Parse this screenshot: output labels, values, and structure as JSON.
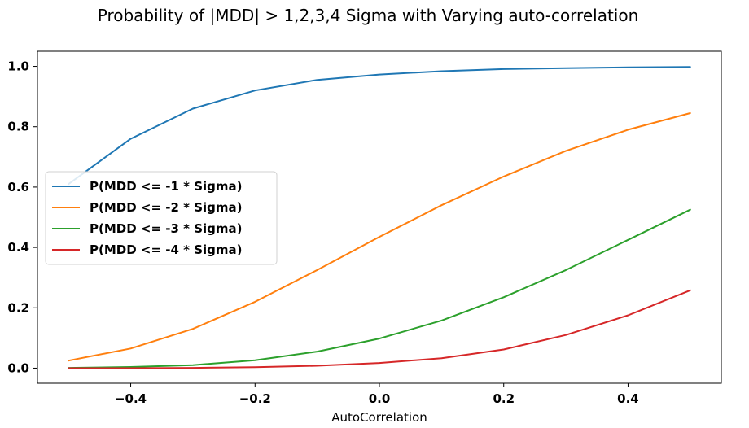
{
  "chart_data": {
    "type": "line",
    "title": "Probability of |MDD| > 1,2,3,4 Sigma with Varying auto-correlation",
    "xlabel": "AutoCorrelation",
    "ylabel": "",
    "x": [
      -0.5,
      -0.4,
      -0.3,
      -0.2,
      -0.1,
      0.0,
      0.1,
      0.2,
      0.3,
      0.4,
      0.5
    ],
    "xlim": [
      -0.55,
      0.55
    ],
    "ylim": [
      -0.05,
      1.05
    ],
    "xticks": [
      -0.4,
      -0.2,
      0.0,
      0.2,
      0.4
    ],
    "xtick_labels": [
      "−0.4",
      "−0.2",
      "0.0",
      "0.2",
      "0.4"
    ],
    "yticks": [
      0.0,
      0.2,
      0.4,
      0.6,
      0.8,
      1.0
    ],
    "ytick_labels": [
      "0.0",
      "0.2",
      "0.4",
      "0.6",
      "0.8",
      "1.0"
    ],
    "grid": false,
    "legend_position": "center-left",
    "series": [
      {
        "name": "P(MDD <= -1 * Sigma)",
        "color": "#1f77b4",
        "values": [
          0.61,
          0.76,
          0.86,
          0.92,
          0.955,
          0.973,
          0.984,
          0.991,
          0.994,
          0.997,
          0.998
        ]
      },
      {
        "name": "P(MDD <= -2 * Sigma)",
        "color": "#ff7f0e",
        "values": [
          0.025,
          0.065,
          0.13,
          0.22,
          0.325,
          0.435,
          0.54,
          0.635,
          0.72,
          0.79,
          0.845
        ]
      },
      {
        "name": "P(MDD <= -3 * Sigma)",
        "color": "#2ca02c",
        "values": [
          0.001,
          0.004,
          0.01,
          0.026,
          0.055,
          0.098,
          0.158,
          0.235,
          0.325,
          0.425,
          0.525
        ]
      },
      {
        "name": "P(MDD <= -4 * Sigma)",
        "color": "#d62728",
        "values": [
          0.0,
          0.0,
          0.001,
          0.003,
          0.008,
          0.017,
          0.033,
          0.062,
          0.11,
          0.175,
          0.258
        ]
      }
    ]
  }
}
